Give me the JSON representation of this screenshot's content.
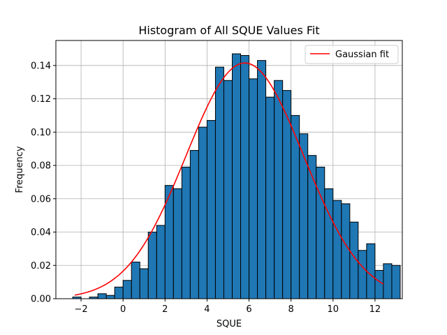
{
  "chart_data": {
    "type": "bar",
    "title": "Histogram of All SQUE Values Fit",
    "xlabel": "SQUE",
    "ylabel": "Frequency",
    "xlim": [
      -3.2,
      13.3
    ],
    "ylim": [
      0,
      0.155
    ],
    "xticks": [
      -2,
      0,
      2,
      4,
      6,
      8,
      10,
      12
    ],
    "xtick_labels": [
      "−2",
      "0",
      "2",
      "4",
      "6",
      "8",
      "10",
      "12"
    ],
    "yticks": [
      0,
      0.02,
      0.04,
      0.06,
      0.08,
      0.1,
      0.12,
      0.14
    ],
    "ytick_labels": [
      "0.00",
      "0.02",
      "0.04",
      "0.06",
      "0.08",
      "0.10",
      "0.12",
      "0.14"
    ],
    "grid": true,
    "bar_color": "#1f77b4",
    "bar_edge_color": "#000000",
    "bins": {
      "start": -2.4,
      "width": 0.4,
      "values": [
        0.001,
        0.0,
        0.001,
        0.003,
        0.002,
        0.007,
        0.011,
        0.022,
        0.018,
        0.04,
        0.044,
        0.068,
        0.066,
        0.079,
        0.089,
        0.103,
        0.107,
        0.139,
        0.131,
        0.147,
        0.146,
        0.132,
        0.143,
        0.121,
        0.131,
        0.125,
        0.11,
        0.099,
        0.086,
        0.079,
        0.066,
        0.059,
        0.057,
        0.046,
        0.029,
        0.033,
        0.017,
        0.021,
        0.02
      ]
    },
    "series": [
      {
        "name": "Gaussian fit",
        "color": "#ff0000",
        "type": "line",
        "mean": 5.8,
        "std": 2.8,
        "peak": 0.1415,
        "x_range": [
          -2.3,
          12.4
        ]
      }
    ],
    "legend": {
      "position": "top-right",
      "entries": [
        "Gaussian fit"
      ]
    }
  }
}
